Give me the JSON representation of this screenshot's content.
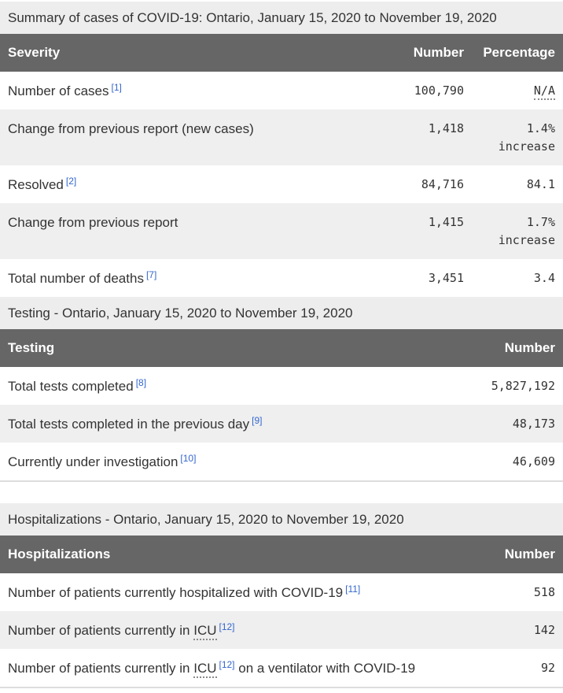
{
  "colors": {
    "caption_bg": "#ededed",
    "header_bg": "#666666",
    "header_text": "#ffffff",
    "stripe_bg": "#efefef",
    "text": "#333333",
    "link": "#3366cc",
    "border": "#dddddd"
  },
  "tables": [
    {
      "id": "severity",
      "caption": "Summary of cases of COVID-19: Ontario, January 15, 2020 to November 19, 2020",
      "columns": [
        {
          "label": "Severity",
          "align": "left",
          "kind": "label"
        },
        {
          "label": "Number",
          "align": "right",
          "kind": "number"
        },
        {
          "label": "Percentage",
          "align": "right",
          "kind": "percentage"
        }
      ],
      "rows": [
        {
          "label": [
            {
              "text": "Number of cases"
            },
            {
              "footnote": "[1]"
            }
          ],
          "values": [
            [
              {
                "text": "100,790"
              }
            ],
            [
              {
                "abbr": "N/A"
              }
            ]
          ]
        },
        {
          "label": [
            {
              "text": "Change from previous report (new cases)"
            }
          ],
          "values": [
            [
              {
                "text": "1,418"
              }
            ],
            [
              {
                "text": "1.4% increase"
              }
            ]
          ]
        },
        {
          "label": [
            {
              "text": "Resolved"
            },
            {
              "footnote": "[2]"
            }
          ],
          "values": [
            [
              {
                "text": "84,716"
              }
            ],
            [
              {
                "text": "84.1"
              }
            ]
          ]
        },
        {
          "label": [
            {
              "text": "Change from previous report"
            }
          ],
          "values": [
            [
              {
                "text": "1,415"
              }
            ],
            [
              {
                "text": "1.7% increase"
              }
            ]
          ]
        },
        {
          "label": [
            {
              "text": "Total number of deaths"
            },
            {
              "footnote": "[7]"
            }
          ],
          "values": [
            [
              {
                "text": "3,451"
              }
            ],
            [
              {
                "text": "3.4"
              }
            ]
          ]
        }
      ]
    },
    {
      "id": "testing",
      "caption": "Testing - Ontario, January 15, 2020 to November 19, 2020",
      "columns": [
        {
          "label": "Testing",
          "align": "left",
          "kind": "label"
        },
        {
          "label": "Number",
          "align": "right",
          "kind": "number"
        }
      ],
      "rows": [
        {
          "label": [
            {
              "text": "Total tests completed"
            },
            {
              "footnote": "[8]"
            }
          ],
          "values": [
            [
              {
                "text": "5,827,192"
              }
            ]
          ]
        },
        {
          "label": [
            {
              "text": "Total tests completed in the previous day"
            },
            {
              "footnote": "[9]"
            }
          ],
          "values": [
            [
              {
                "text": "48,173"
              }
            ]
          ]
        },
        {
          "label": [
            {
              "text": "Currently under investigation"
            },
            {
              "footnote": "[10]"
            }
          ],
          "values": [
            [
              {
                "text": "46,609"
              }
            ]
          ]
        }
      ]
    },
    {
      "id": "hospitalizations",
      "caption": "Hospitalizations - Ontario, January 15, 2020 to November 19, 2020",
      "columns": [
        {
          "label": "Hospitalizations",
          "align": "left",
          "kind": "label"
        },
        {
          "label": "Number",
          "align": "right",
          "kind": "number"
        }
      ],
      "rows": [
        {
          "label": [
            {
              "text": "Number of patients currently hospitalized with COVID-19"
            },
            {
              "footnote": "[11]"
            }
          ],
          "values": [
            [
              {
                "text": "518"
              }
            ]
          ]
        },
        {
          "label": [
            {
              "text": "Number of patients currently in "
            },
            {
              "abbr": "ICU"
            },
            {
              "footnote": "[12]"
            }
          ],
          "values": [
            [
              {
                "text": "142"
              }
            ]
          ]
        },
        {
          "label": [
            {
              "text": "Number of patients currently in "
            },
            {
              "abbr": "ICU"
            },
            {
              "footnote": "[12]"
            },
            {
              "text": " on a ventilator with COVID-19"
            }
          ],
          "values": [
            [
              {
                "text": "92"
              }
            ]
          ]
        }
      ]
    }
  ]
}
